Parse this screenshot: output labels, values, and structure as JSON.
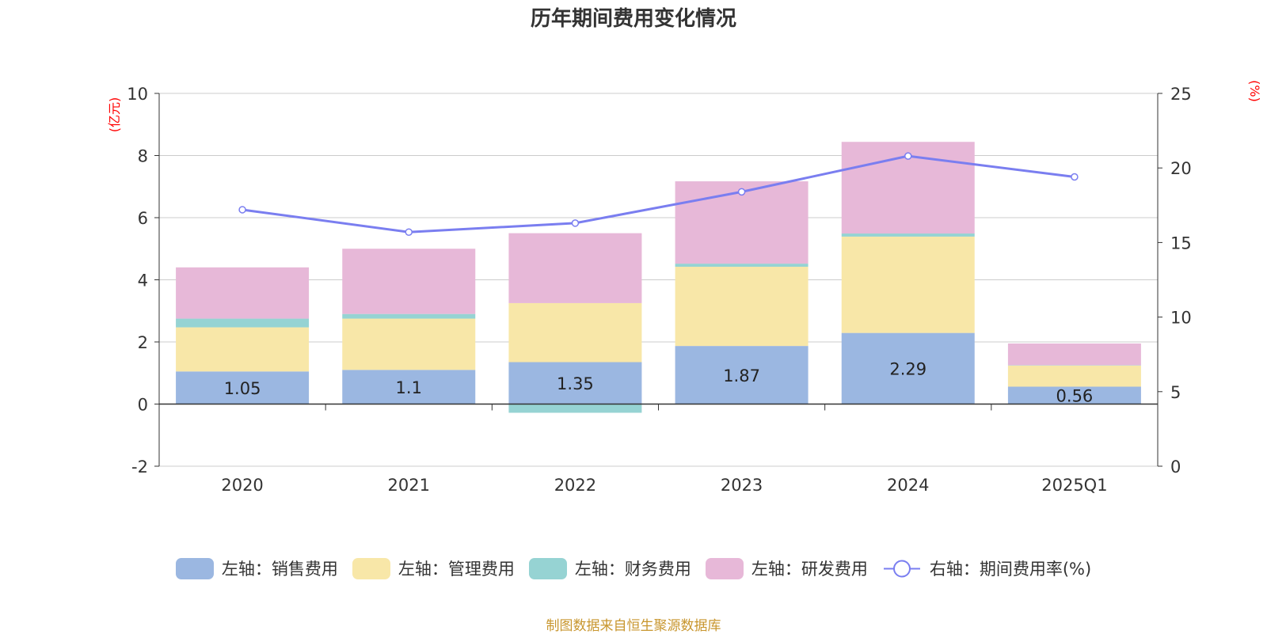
{
  "chart_data": {
    "type": "bar",
    "title": "历年期间费用变化情况",
    "categories": [
      "2020",
      "2021",
      "2022",
      "2023",
      "2024",
      "2025Q1"
    ],
    "left_axis": {
      "unit": "(亿元)",
      "ylim": [
        -2,
        10
      ],
      "ticks": [
        -2,
        0,
        2,
        4,
        6,
        8,
        10
      ]
    },
    "right_axis": {
      "unit": "(%)",
      "ylim": [
        0,
        25
      ],
      "ticks": [
        0,
        5,
        10,
        15,
        20,
        25
      ]
    },
    "grid": true,
    "series": [
      {
        "name": "左轴：销售费用",
        "axis": "left",
        "kind": "bar",
        "color": "#9bb7e1",
        "values": [
          1.05,
          1.1,
          1.35,
          1.87,
          2.29,
          0.56
        ],
        "labels": [
          "1.05",
          "1.1",
          "1.35",
          "1.87",
          "2.29",
          "0.56"
        ]
      },
      {
        "name": "左轴：管理费用",
        "axis": "left",
        "kind": "bar",
        "color": "#f8e7a8",
        "values": [
          1.42,
          1.65,
          1.9,
          2.55,
          3.1,
          0.68
        ]
      },
      {
        "name": "左轴：财务费用",
        "axis": "left",
        "kind": "bar",
        "color": "#96d3d3",
        "values": [
          0.28,
          0.15,
          -0.28,
          0.1,
          0.1,
          0.01
        ]
      },
      {
        "name": "左轴：研发费用",
        "axis": "left",
        "kind": "bar",
        "color": "#e7b8d8",
        "values": [
          1.65,
          2.1,
          2.25,
          2.65,
          2.95,
          0.7
        ]
      },
      {
        "name": "右轴：期间费用率(%)",
        "axis": "right",
        "kind": "line",
        "color": "#7a7ef0",
        "values": [
          17.2,
          15.7,
          16.3,
          18.4,
          20.8,
          19.4
        ]
      }
    ],
    "legend_position": "bottom"
  },
  "source": "制图数据来自恒生聚源数据库"
}
